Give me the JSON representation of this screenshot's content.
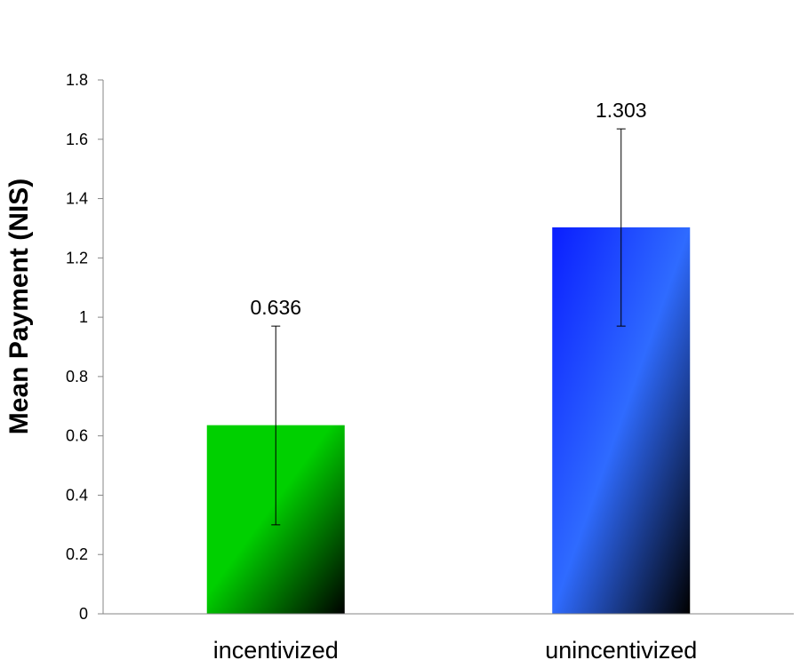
{
  "chart_data": {
    "type": "bar",
    "title": "",
    "xlabel": "",
    "ylabel": "Mean Payment (NIS)",
    "categories": [
      "incentivized",
      "unincentivized"
    ],
    "values": [
      0.636,
      1.303
    ],
    "data_labels": [
      "0.636",
      "1.303"
    ],
    "error_bars": [
      {
        "low": 0.3,
        "high": 0.97
      },
      {
        "low": 0.97,
        "high": 1.635
      }
    ],
    "ylim": [
      0,
      1.8
    ],
    "yticks": [
      0,
      0.2,
      0.4,
      0.6,
      0.8,
      1,
      1.2,
      1.4,
      1.6,
      1.8
    ],
    "ytick_labels": [
      "0",
      "0.2",
      "0.4",
      "0.6",
      "0.8",
      "1",
      "1.2",
      "1.4",
      "1.6",
      "1.8"
    ],
    "grid": false,
    "legend": "none",
    "colors": [
      {
        "start": "#00d000",
        "end": "#000000"
      },
      {
        "start": "#0a1eff",
        "mid": "#2f6bff",
        "end": "#000000"
      }
    ]
  }
}
